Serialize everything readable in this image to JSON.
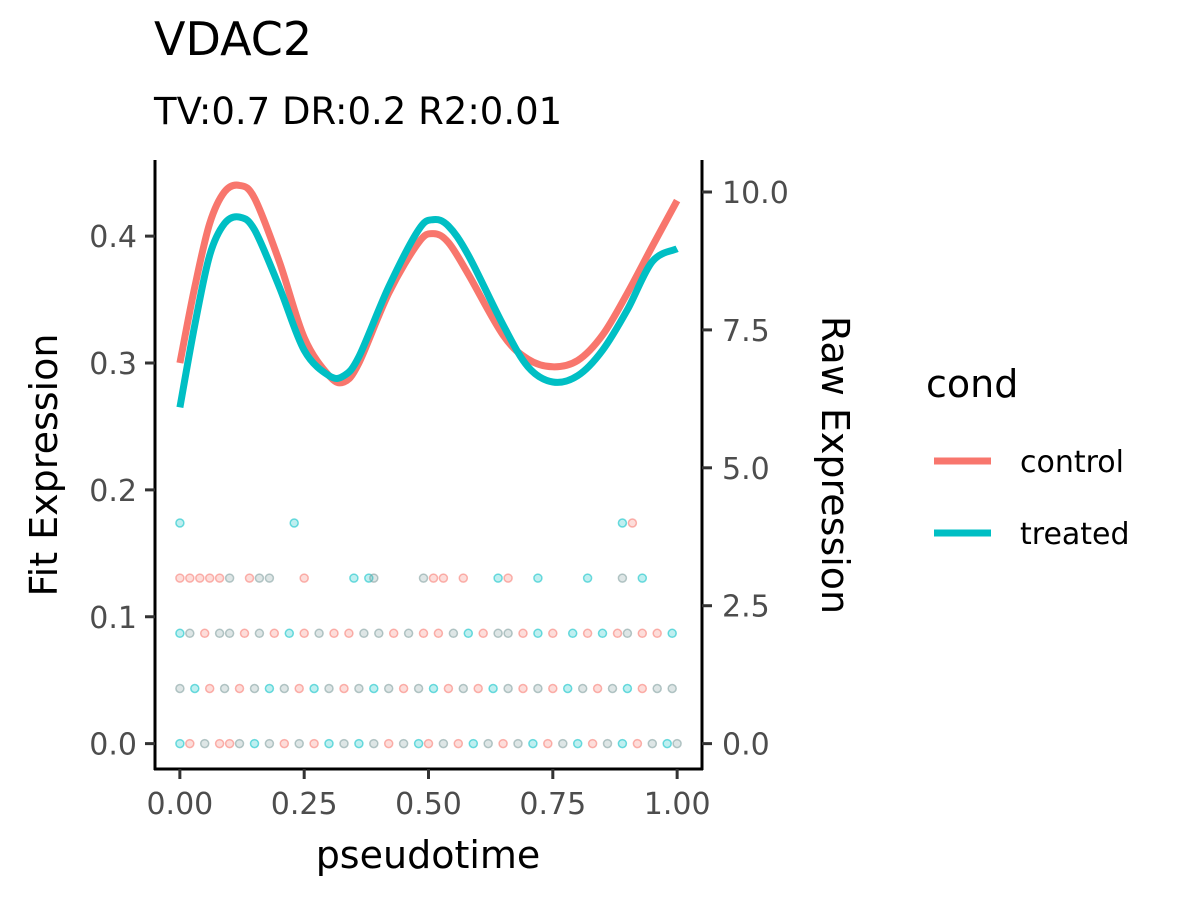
{
  "chart_data": {
    "type": "line",
    "title": "VDAC2",
    "subtitle": "TV:0.7 DR:0.2 R2:0.01",
    "xlabel": "pseudotime",
    "ylabel": "Fit Expression",
    "y2label": "Raw Expression",
    "xlim": [
      -0.05,
      1.05
    ],
    "ylim": [
      -0.02,
      0.46
    ],
    "y2lim": [
      -0.46,
      10.58
    ],
    "x_ticks": [
      "0.00",
      "0.25",
      "0.50",
      "0.75",
      "1.00"
    ],
    "y_ticks": [
      "0.0",
      "0.1",
      "0.2",
      "0.3",
      "0.4"
    ],
    "y2_ticks": [
      "0.0",
      "2.5",
      "5.0",
      "7.5",
      "10.0"
    ],
    "grid": false,
    "legend": {
      "title": "cond",
      "position": "right",
      "entries": [
        "control",
        "treated"
      ]
    },
    "colors": {
      "control": "#F8766D",
      "treated": "#00BFC4",
      "mixed": "#7C9A9A"
    },
    "series": [
      {
        "name": "control",
        "x": [
          0.0,
          0.03,
          0.06,
          0.09,
          0.12,
          0.15,
          0.2,
          0.25,
          0.3,
          0.33,
          0.36,
          0.42,
          0.48,
          0.51,
          0.54,
          0.58,
          0.65,
          0.7,
          0.75,
          0.8,
          0.85,
          0.9,
          0.95,
          1.0
        ],
        "y": [
          0.3,
          0.36,
          0.41,
          0.435,
          0.44,
          0.43,
          0.38,
          0.32,
          0.29,
          0.285,
          0.3,
          0.355,
          0.395,
          0.402,
          0.395,
          0.37,
          0.322,
          0.303,
          0.297,
          0.302,
          0.322,
          0.355,
          0.392,
          0.428
        ]
      },
      {
        "name": "treated",
        "x": [
          0.0,
          0.03,
          0.06,
          0.09,
          0.12,
          0.15,
          0.2,
          0.25,
          0.3,
          0.33,
          0.36,
          0.42,
          0.48,
          0.51,
          0.54,
          0.58,
          0.65,
          0.7,
          0.75,
          0.8,
          0.85,
          0.9,
          0.95,
          1.0
        ],
        "y": [
          0.265,
          0.33,
          0.385,
          0.41,
          0.415,
          0.405,
          0.36,
          0.31,
          0.29,
          0.29,
          0.305,
          0.36,
          0.405,
          0.413,
          0.408,
          0.385,
          0.33,
          0.297,
          0.285,
          0.29,
          0.31,
          0.342,
          0.38,
          0.39
        ]
      }
    ],
    "raw_points": {
      "levels": [
        0,
        1,
        2,
        3,
        4
      ],
      "points": [
        [
          0.0,
          0,
          "t"
        ],
        [
          0.02,
          0,
          "c"
        ],
        [
          0.05,
          0,
          "m"
        ],
        [
          0.08,
          0,
          "c"
        ],
        [
          0.1,
          0,
          "c"
        ],
        [
          0.12,
          0,
          "m"
        ],
        [
          0.15,
          0,
          "t"
        ],
        [
          0.18,
          0,
          "m"
        ],
        [
          0.21,
          0,
          "c"
        ],
        [
          0.24,
          0,
          "m"
        ],
        [
          0.27,
          0,
          "c"
        ],
        [
          0.3,
          0,
          "t"
        ],
        [
          0.33,
          0,
          "m"
        ],
        [
          0.36,
          0,
          "t"
        ],
        [
          0.39,
          0,
          "m"
        ],
        [
          0.42,
          0,
          "c"
        ],
        [
          0.45,
          0,
          "m"
        ],
        [
          0.48,
          0,
          "t"
        ],
        [
          0.5,
          0,
          "c"
        ],
        [
          0.53,
          0,
          "m"
        ],
        [
          0.56,
          0,
          "c"
        ],
        [
          0.59,
          0,
          "t"
        ],
        [
          0.62,
          0,
          "m"
        ],
        [
          0.65,
          0,
          "c"
        ],
        [
          0.68,
          0,
          "m"
        ],
        [
          0.71,
          0,
          "t"
        ],
        [
          0.74,
          0,
          "c"
        ],
        [
          0.77,
          0,
          "m"
        ],
        [
          0.8,
          0,
          "t"
        ],
        [
          0.83,
          0,
          "c"
        ],
        [
          0.86,
          0,
          "m"
        ],
        [
          0.89,
          0,
          "t"
        ],
        [
          0.92,
          0,
          "c"
        ],
        [
          0.95,
          0,
          "m"
        ],
        [
          0.98,
          0,
          "t"
        ],
        [
          1.0,
          0,
          "m"
        ],
        [
          0.0,
          1,
          "m"
        ],
        [
          0.03,
          1,
          "t"
        ],
        [
          0.06,
          1,
          "c"
        ],
        [
          0.09,
          1,
          "m"
        ],
        [
          0.12,
          1,
          "c"
        ],
        [
          0.15,
          1,
          "m"
        ],
        [
          0.18,
          1,
          "t"
        ],
        [
          0.21,
          1,
          "m"
        ],
        [
          0.24,
          1,
          "c"
        ],
        [
          0.27,
          1,
          "t"
        ],
        [
          0.3,
          1,
          "m"
        ],
        [
          0.33,
          1,
          "c"
        ],
        [
          0.36,
          1,
          "m"
        ],
        [
          0.39,
          1,
          "t"
        ],
        [
          0.42,
          1,
          "m"
        ],
        [
          0.45,
          1,
          "c"
        ],
        [
          0.48,
          1,
          "m"
        ],
        [
          0.51,
          1,
          "t"
        ],
        [
          0.54,
          1,
          "c"
        ],
        [
          0.57,
          1,
          "m"
        ],
        [
          0.6,
          1,
          "c"
        ],
        [
          0.63,
          1,
          "t"
        ],
        [
          0.66,
          1,
          "m"
        ],
        [
          0.69,
          1,
          "c"
        ],
        [
          0.72,
          1,
          "m"
        ],
        [
          0.75,
          1,
          "c"
        ],
        [
          0.78,
          1,
          "t"
        ],
        [
          0.81,
          1,
          "m"
        ],
        [
          0.84,
          1,
          "c"
        ],
        [
          0.87,
          1,
          "m"
        ],
        [
          0.9,
          1,
          "t"
        ],
        [
          0.93,
          1,
          "c"
        ],
        [
          0.96,
          1,
          "m"
        ],
        [
          0.99,
          1,
          "m"
        ],
        [
          0.0,
          2,
          "t"
        ],
        [
          0.02,
          2,
          "m"
        ],
        [
          0.05,
          2,
          "c"
        ],
        [
          0.08,
          2,
          "m"
        ],
        [
          0.1,
          2,
          "m"
        ],
        [
          0.13,
          2,
          "c"
        ],
        [
          0.16,
          2,
          "m"
        ],
        [
          0.19,
          2,
          "c"
        ],
        [
          0.22,
          2,
          "t"
        ],
        [
          0.25,
          2,
          "c"
        ],
        [
          0.28,
          2,
          "m"
        ],
        [
          0.31,
          2,
          "c"
        ],
        [
          0.34,
          2,
          "c"
        ],
        [
          0.37,
          2,
          "m"
        ],
        [
          0.4,
          2,
          "m"
        ],
        [
          0.43,
          2,
          "c"
        ],
        [
          0.46,
          2,
          "m"
        ],
        [
          0.49,
          2,
          "c"
        ],
        [
          0.52,
          2,
          "c"
        ],
        [
          0.55,
          2,
          "m"
        ],
        [
          0.58,
          2,
          "t"
        ],
        [
          0.61,
          2,
          "c"
        ],
        [
          0.64,
          2,
          "m"
        ],
        [
          0.66,
          2,
          "m"
        ],
        [
          0.69,
          2,
          "c"
        ],
        [
          0.72,
          2,
          "t"
        ],
        [
          0.75,
          2,
          "c"
        ],
        [
          0.79,
          2,
          "t"
        ],
        [
          0.82,
          2,
          "c"
        ],
        [
          0.85,
          2,
          "t"
        ],
        [
          0.88,
          2,
          "c"
        ],
        [
          0.9,
          2,
          "m"
        ],
        [
          0.93,
          2,
          "c"
        ],
        [
          0.96,
          2,
          "c"
        ],
        [
          0.99,
          2,
          "t"
        ],
        [
          0.0,
          3,
          "c"
        ],
        [
          0.02,
          3,
          "c"
        ],
        [
          0.04,
          3,
          "c"
        ],
        [
          0.06,
          3,
          "c"
        ],
        [
          0.08,
          3,
          "c"
        ],
        [
          0.1,
          3,
          "m"
        ],
        [
          0.14,
          3,
          "c"
        ],
        [
          0.16,
          3,
          "m"
        ],
        [
          0.18,
          3,
          "m"
        ],
        [
          0.25,
          3,
          "c"
        ],
        [
          0.35,
          3,
          "t"
        ],
        [
          0.38,
          3,
          "t"
        ],
        [
          0.39,
          3,
          "m"
        ],
        [
          0.49,
          3,
          "m"
        ],
        [
          0.51,
          3,
          "c"
        ],
        [
          0.53,
          3,
          "c"
        ],
        [
          0.57,
          3,
          "c"
        ],
        [
          0.64,
          3,
          "t"
        ],
        [
          0.66,
          3,
          "c"
        ],
        [
          0.72,
          3,
          "t"
        ],
        [
          0.82,
          3,
          "t"
        ],
        [
          0.89,
          3,
          "m"
        ],
        [
          0.93,
          3,
          "t"
        ],
        [
          0.0,
          4,
          "t"
        ],
        [
          0.23,
          4,
          "t"
        ],
        [
          0.89,
          4,
          "t"
        ],
        [
          0.91,
          4,
          "c"
        ]
      ]
    }
  }
}
